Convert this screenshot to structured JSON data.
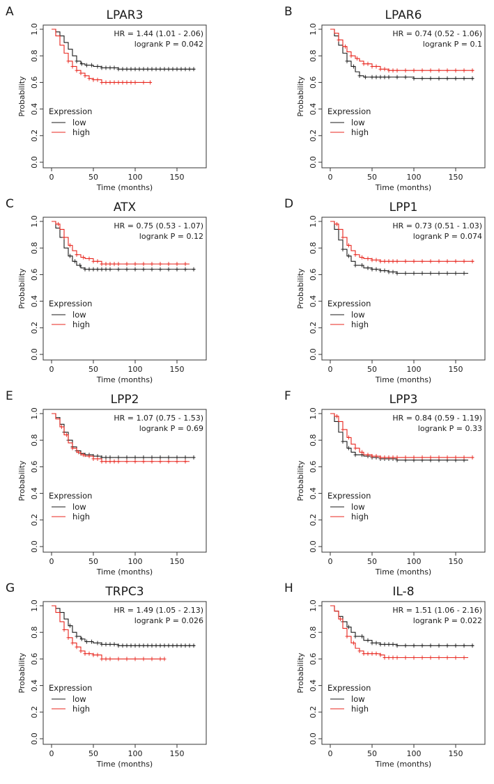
{
  "colors": {
    "low": "#1a1a1a",
    "high": "#e8241c",
    "axis": "#333333"
  },
  "chart_data": [
    {
      "panel": "A",
      "type": "line",
      "title": "LPAR3",
      "xlabel": "Time (months)",
      "ylabel": "Probability",
      "xlim": [
        0,
        175
      ],
      "ylim": [
        0,
        1
      ],
      "xticks": [
        "0",
        "50",
        "100",
        "150"
      ],
      "yticks": [
        "0.0",
        "0.2",
        "0.4",
        "0.6",
        "0.8",
        "1.0"
      ],
      "hr_text": "HR = 1.44 (1.01 - 2.06)",
      "p_text": "logrank P = 0.042",
      "legend_title": "Expression",
      "series": [
        {
          "name": "low",
          "color": "#1a1a1a",
          "x": [
            0,
            5,
            10,
            15,
            20,
            25,
            30,
            35,
            40,
            50,
            60,
            80,
            100,
            130,
            172
          ],
          "y": [
            1.0,
            0.98,
            0.95,
            0.9,
            0.85,
            0.8,
            0.76,
            0.74,
            0.73,
            0.72,
            0.71,
            0.7,
            0.7,
            0.7,
            0.7
          ],
          "censor": [
            30,
            36,
            42,
            48,
            55,
            60,
            65,
            70,
            75,
            80,
            85,
            90,
            95,
            100,
            105,
            110,
            115,
            120,
            125,
            130,
            135,
            140,
            145,
            150,
            155,
            160,
            165,
            170
          ]
        },
        {
          "name": "high",
          "color": "#e8241c",
          "x": [
            0,
            5,
            10,
            15,
            20,
            25,
            30,
            35,
            40,
            45,
            50,
            55,
            60,
            120
          ],
          "y": [
            1.0,
            0.95,
            0.88,
            0.82,
            0.76,
            0.72,
            0.69,
            0.67,
            0.65,
            0.63,
            0.62,
            0.62,
            0.6,
            0.6
          ],
          "censor": [
            20,
            25,
            30,
            35,
            40,
            45,
            50,
            55,
            60,
            65,
            70,
            75,
            80,
            85,
            90,
            95,
            100,
            110,
            118
          ]
        }
      ]
    },
    {
      "panel": "B",
      "type": "line",
      "title": "LPAR6",
      "xlabel": "Time (months)",
      "ylabel": "Probability",
      "xlim": [
        0,
        175
      ],
      "ylim": [
        0,
        1
      ],
      "xticks": [
        "0",
        "50",
        "100",
        "150"
      ],
      "yticks": [
        "0.0",
        "0.2",
        "0.4",
        "0.6",
        "0.8",
        "1.0"
      ],
      "hr_text": "HR = 0.74 (0.52 - 1.06)",
      "p_text": "logrank P = 0.1",
      "legend_title": "Expression",
      "series": [
        {
          "name": "low",
          "color": "#1a1a1a",
          "x": [
            0,
            5,
            10,
            15,
            20,
            25,
            30,
            35,
            40,
            60,
            100,
            172
          ],
          "y": [
            1.0,
            0.95,
            0.88,
            0.82,
            0.76,
            0.72,
            0.68,
            0.65,
            0.64,
            0.64,
            0.63,
            0.63
          ],
          "censor": [
            20,
            28,
            35,
            42,
            50,
            55,
            60,
            65,
            70,
            80,
            90,
            100,
            110,
            120,
            130,
            140,
            150,
            160,
            170
          ]
        },
        {
          "name": "high",
          "color": "#e8241c",
          "x": [
            0,
            5,
            10,
            15,
            20,
            25,
            30,
            35,
            40,
            50,
            60,
            70,
            172
          ],
          "y": [
            1.0,
            0.97,
            0.92,
            0.87,
            0.83,
            0.8,
            0.78,
            0.76,
            0.74,
            0.72,
            0.7,
            0.69,
            0.69
          ],
          "censor": [
            10,
            18,
            25,
            32,
            40,
            45,
            50,
            55,
            60,
            65,
            70,
            75,
            80,
            90,
            100,
            110,
            120,
            130,
            140,
            150,
            160,
            170
          ]
        }
      ]
    },
    {
      "panel": "C",
      "type": "line",
      "title": "ATX",
      "xlabel": "Time (months)",
      "ylabel": "Probability",
      "xlim": [
        0,
        175
      ],
      "ylim": [
        0,
        1
      ],
      "xticks": [
        "0",
        "50",
        "100",
        "150"
      ],
      "yticks": [
        "0.0",
        "0.2",
        "0.4",
        "0.6",
        "0.8",
        "1.0"
      ],
      "hr_text": "HR = 0.75 (0.53 - 1.07)",
      "p_text": "logrank P = 0.12",
      "legend_title": "Expression",
      "series": [
        {
          "name": "low",
          "color": "#1a1a1a",
          "x": [
            0,
            5,
            10,
            15,
            20,
            25,
            30,
            35,
            40,
            60,
            172
          ],
          "y": [
            1.0,
            0.95,
            0.88,
            0.8,
            0.74,
            0.7,
            0.67,
            0.65,
            0.64,
            0.64,
            0.64
          ],
          "censor": [
            22,
            28,
            34,
            40,
            45,
            50,
            55,
            60,
            65,
            70,
            80,
            90,
            100,
            110,
            120,
            130,
            140,
            150,
            160,
            170
          ]
        },
        {
          "name": "high",
          "color": "#e8241c",
          "x": [
            0,
            5,
            10,
            15,
            20,
            25,
            30,
            35,
            40,
            50,
            60,
            165
          ],
          "y": [
            1.0,
            0.98,
            0.94,
            0.88,
            0.82,
            0.78,
            0.75,
            0.73,
            0.72,
            0.7,
            0.68,
            0.68
          ],
          "censor": [
            8,
            15,
            22,
            30,
            38,
            45,
            50,
            55,
            60,
            65,
            70,
            75,
            80,
            90,
            100,
            110,
            120,
            130,
            140,
            150,
            160
          ]
        }
      ]
    },
    {
      "panel": "D",
      "type": "line",
      "title": "LPP1",
      "xlabel": "Time (months)",
      "ylabel": "Probability",
      "xlim": [
        0,
        175
      ],
      "ylim": [
        0,
        1
      ],
      "xticks": [
        "0",
        "50",
        "100",
        "150"
      ],
      "yticks": [
        "0.0",
        "0.2",
        "0.4",
        "0.6",
        "0.8",
        "1.0"
      ],
      "hr_text": "HR = 0.73 (0.51 - 1.03)",
      "p_text": "logrank P = 0.074",
      "legend_title": "Expression",
      "series": [
        {
          "name": "low",
          "color": "#1a1a1a",
          "x": [
            0,
            5,
            10,
            15,
            20,
            25,
            30,
            40,
            50,
            60,
            70,
            80,
            165
          ],
          "y": [
            1.0,
            0.94,
            0.86,
            0.79,
            0.74,
            0.7,
            0.67,
            0.65,
            0.64,
            0.63,
            0.62,
            0.61,
            0.61
          ],
          "censor": [
            15,
            22,
            30,
            38,
            45,
            50,
            55,
            60,
            65,
            70,
            75,
            80,
            90,
            100,
            110,
            120,
            130,
            140,
            150,
            160
          ]
        },
        {
          "name": "high",
          "color": "#e8241c",
          "x": [
            0,
            5,
            10,
            15,
            20,
            25,
            30,
            35,
            40,
            50,
            60,
            172
          ],
          "y": [
            1.0,
            0.98,
            0.94,
            0.88,
            0.82,
            0.78,
            0.75,
            0.73,
            0.72,
            0.71,
            0.7,
            0.7
          ],
          "censor": [
            8,
            15,
            22,
            30,
            38,
            45,
            50,
            55,
            60,
            65,
            70,
            75,
            80,
            90,
            100,
            110,
            120,
            130,
            140,
            150,
            160,
            170
          ]
        }
      ]
    },
    {
      "panel": "E",
      "type": "line",
      "title": "LPP2",
      "xlabel": "Time (months)",
      "ylabel": "Probability",
      "xlim": [
        0,
        175
      ],
      "ylim": [
        0,
        1
      ],
      "xticks": [
        "0",
        "50",
        "100",
        "150"
      ],
      "yticks": [
        "0.0",
        "0.2",
        "0.4",
        "0.6",
        "0.8",
        "1.0"
      ],
      "hr_text": "HR = 1.07 (0.75 - 1.53)",
      "p_text": "logrank P = 0.69",
      "legend_title": "Expression",
      "series": [
        {
          "name": "low",
          "color": "#1a1a1a",
          "x": [
            0,
            5,
            10,
            15,
            20,
            25,
            30,
            35,
            40,
            50,
            60,
            172
          ],
          "y": [
            1.0,
            0.97,
            0.92,
            0.86,
            0.8,
            0.75,
            0.72,
            0.7,
            0.69,
            0.68,
            0.67,
            0.67
          ],
          "censor": [
            15,
            20,
            25,
            30,
            35,
            40,
            45,
            50,
            55,
            60,
            65,
            70,
            80,
            90,
            100,
            110,
            120,
            130,
            140,
            150,
            160,
            170
          ]
        },
        {
          "name": "high",
          "color": "#e8241c",
          "x": [
            0,
            5,
            10,
            15,
            20,
            25,
            30,
            35,
            40,
            50,
            60,
            165
          ],
          "y": [
            1.0,
            0.96,
            0.9,
            0.84,
            0.78,
            0.74,
            0.71,
            0.69,
            0.68,
            0.66,
            0.64,
            0.64
          ],
          "censor": [
            12,
            18,
            25,
            32,
            38,
            45,
            50,
            55,
            60,
            65,
            70,
            75,
            80,
            90,
            100,
            110,
            120,
            130,
            140,
            150,
            160
          ]
        }
      ]
    },
    {
      "panel": "F",
      "type": "line",
      "title": "LPP3",
      "xlabel": "Time (months)",
      "ylabel": "Probability",
      "xlim": [
        0,
        175
      ],
      "ylim": [
        0,
        1
      ],
      "xticks": [
        "0",
        "50",
        "100",
        "150"
      ],
      "yticks": [
        "0.0",
        "0.2",
        "0.4",
        "0.6",
        "0.8",
        "1.0"
      ],
      "hr_text": "HR = 0.84 (0.59 - 1.19)",
      "p_text": "logrank P = 0.33",
      "legend_title": "Expression",
      "series": [
        {
          "name": "low",
          "color": "#1a1a1a",
          "x": [
            0,
            5,
            10,
            15,
            20,
            25,
            30,
            40,
            50,
            60,
            80,
            165
          ],
          "y": [
            1.0,
            0.94,
            0.86,
            0.79,
            0.74,
            0.71,
            0.69,
            0.68,
            0.67,
            0.66,
            0.65,
            0.65
          ],
          "censor": [
            15,
            22,
            30,
            38,
            45,
            50,
            55,
            60,
            65,
            70,
            75,
            80,
            90,
            100,
            110,
            120,
            130,
            140,
            150,
            160
          ]
        },
        {
          "name": "high",
          "color": "#e8241c",
          "x": [
            0,
            5,
            10,
            15,
            20,
            25,
            30,
            35,
            40,
            50,
            60,
            172
          ],
          "y": [
            1.0,
            0.98,
            0.94,
            0.88,
            0.82,
            0.77,
            0.74,
            0.71,
            0.69,
            0.68,
            0.67,
            0.67
          ],
          "censor": [
            8,
            15,
            22,
            30,
            38,
            45,
            50,
            55,
            60,
            65,
            70,
            75,
            80,
            90,
            100,
            110,
            120,
            130,
            140,
            150,
            160,
            170
          ]
        }
      ]
    },
    {
      "panel": "G",
      "type": "line",
      "title": "TRPC3",
      "xlabel": "Time (months)",
      "ylabel": "Probability",
      "xlim": [
        0,
        175
      ],
      "ylim": [
        0,
        1
      ],
      "xticks": [
        "0",
        "50",
        "100",
        "150"
      ],
      "yticks": [
        "0.0",
        "0.2",
        "0.4",
        "0.6",
        "0.8",
        "1.0"
      ],
      "hr_text": "HR = 1.49 (1.05 - 2.13)",
      "p_text": "logrank P = 0.026",
      "legend_title": "Expression",
      "series": [
        {
          "name": "low",
          "color": "#1a1a1a",
          "x": [
            0,
            5,
            10,
            15,
            20,
            25,
            30,
            35,
            40,
            50,
            60,
            80,
            172
          ],
          "y": [
            1.0,
            0.98,
            0.95,
            0.9,
            0.85,
            0.8,
            0.77,
            0.75,
            0.73,
            0.72,
            0.71,
            0.7,
            0.7
          ],
          "censor": [
            22,
            30,
            36,
            42,
            48,
            55,
            60,
            65,
            70,
            75,
            80,
            85,
            90,
            95,
            100,
            105,
            110,
            115,
            120,
            125,
            130,
            135,
            140,
            145,
            150,
            155,
            160,
            165,
            170
          ]
        },
        {
          "name": "high",
          "color": "#e8241c",
          "x": [
            0,
            5,
            10,
            15,
            20,
            25,
            30,
            35,
            40,
            50,
            60,
            135
          ],
          "y": [
            1.0,
            0.95,
            0.88,
            0.82,
            0.76,
            0.72,
            0.69,
            0.66,
            0.64,
            0.63,
            0.6,
            0.6
          ],
          "censor": [
            15,
            20,
            25,
            30,
            35,
            40,
            45,
            50,
            55,
            60,
            65,
            70,
            80,
            90,
            100,
            110,
            120,
            130,
            135
          ]
        }
      ]
    },
    {
      "panel": "H",
      "type": "line",
      "title": "IL-8",
      "xlabel": "Time (months)",
      "ylabel": "Probability",
      "xlim": [
        0,
        175
      ],
      "ylim": [
        0,
        1
      ],
      "xticks": [
        "0",
        "50",
        "100",
        "150"
      ],
      "yticks": [
        "0.0",
        "0.2",
        "0.4",
        "0.6",
        "0.8",
        "1.0"
      ],
      "hr_text": "HR = 1.51 (1.06 - 2.16)",
      "p_text": "logrank P = 0.022",
      "legend_title": "Expression",
      "series": [
        {
          "name": "low",
          "color": "#1a1a1a",
          "x": [
            0,
            5,
            10,
            15,
            20,
            25,
            30,
            40,
            50,
            60,
            80,
            172
          ],
          "y": [
            1.0,
            0.96,
            0.92,
            0.88,
            0.84,
            0.8,
            0.77,
            0.74,
            0.72,
            0.71,
            0.7,
            0.7
          ],
          "censor": [
            15,
            22,
            30,
            38,
            45,
            50,
            55,
            60,
            65,
            70,
            75,
            80,
            90,
            100,
            110,
            120,
            130,
            140,
            150,
            160,
            170
          ]
        },
        {
          "name": "high",
          "color": "#e8241c",
          "x": [
            0,
            5,
            10,
            15,
            20,
            25,
            30,
            35,
            40,
            50,
            60,
            65,
            165
          ],
          "y": [
            1.0,
            0.96,
            0.9,
            0.83,
            0.77,
            0.72,
            0.68,
            0.66,
            0.64,
            0.64,
            0.63,
            0.61,
            0.61
          ],
          "censor": [
            12,
            20,
            28,
            35,
            40,
            45,
            50,
            55,
            60,
            65,
            70,
            75,
            80,
            90,
            100,
            110,
            120,
            130,
            140,
            150,
            160
          ]
        }
      ]
    }
  ]
}
